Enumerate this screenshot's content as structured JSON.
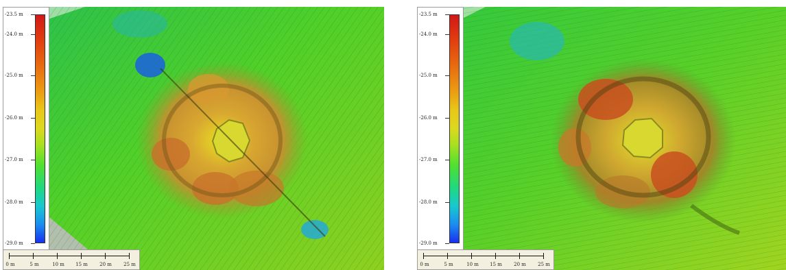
{
  "figure": {
    "left_panel": {
      "legend": {
        "labels": [
          "-23.5 m",
          "-24.0 m",
          "-25.0 m",
          "-26.0 m",
          "-27.0 m",
          "-28.0 m",
          "-29.0 m"
        ]
      },
      "scale": {
        "labels": [
          "0 m",
          "5 m",
          "10 m",
          "15 m",
          "20 m",
          "25 m"
        ]
      }
    },
    "right_panel": {
      "legend": {
        "labels": [
          "-23.5 m",
          "-24.0 m",
          "-25.0 m",
          "-26.0 m",
          "-27.0 m",
          "-28.0 m",
          "-29.0 m"
        ]
      },
      "scale": {
        "labels": [
          "0 m",
          "5 m",
          "10 m",
          "15 m",
          "20 m",
          "25 m"
        ]
      }
    }
  },
  "colors": {
    "deep": "#1a30f0",
    "mid": "#dcd820",
    "shallow": "#d01818",
    "seafloor": "#3ab83a"
  }
}
